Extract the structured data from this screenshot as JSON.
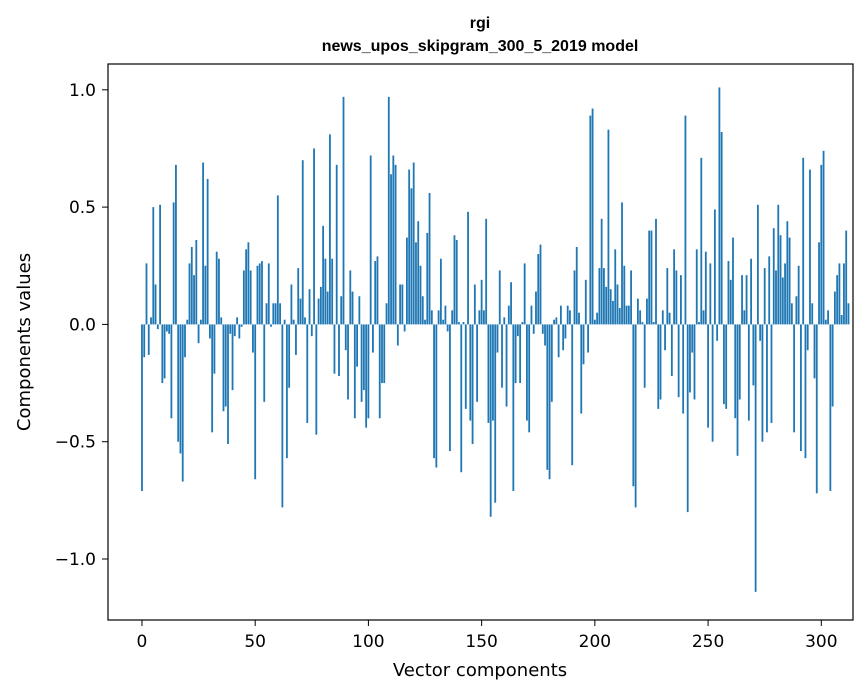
{
  "chart_data": {
    "type": "bar",
    "title": "rgi",
    "subtitle": "news_upos_skipgram_300_5_2019 model",
    "xlabel": "Vector components",
    "ylabel": "Components values",
    "xlim": [
      -15,
      314
    ],
    "ylim": [
      -1.26,
      1.11
    ],
    "xticks": [
      0,
      50,
      100,
      150,
      200,
      250,
      300
    ],
    "xtick_labels": [
      "0",
      "50",
      "100",
      "150",
      "200",
      "250",
      "300"
    ],
    "yticks": [
      -1.0,
      -0.5,
      0.0,
      0.5,
      1.0
    ],
    "ytick_labels": [
      "−1.0",
      "−0.5",
      "0.0",
      "0.5",
      "1.0"
    ],
    "bar_color": "#1f77b4",
    "grid": false,
    "values": [
      -0.71,
      -0.14,
      0.26,
      -0.13,
      0.03,
      0.5,
      0.17,
      -0.02,
      0.51,
      -0.25,
      -0.23,
      -0.03,
      -0.04,
      -0.4,
      0.52,
      0.68,
      -0.5,
      -0.55,
      -0.67,
      -0.14,
      0.02,
      0.26,
      0.33,
      0.21,
      0.36,
      -0.08,
      0.02,
      0.69,
      0.25,
      0.62,
      -0.06,
      -0.46,
      -0.21,
      0.31,
      0.28,
      0.03,
      -0.37,
      -0.35,
      -0.51,
      -0.04,
      -0.28,
      -0.05,
      0.03,
      -0.06,
      -0.01,
      0.23,
      0.32,
      0.35,
      0.23,
      -0.12,
      -0.66,
      0.25,
      0.26,
      0.27,
      -0.33,
      0.09,
      0.26,
      -0.01,
      0.09,
      0.09,
      0.55,
      0.09,
      -0.78,
      0.02,
      -0.57,
      -0.27,
      0.17,
      0.02,
      -0.13,
      0.24,
      0.11,
      0.7,
      0.03,
      -0.42,
      0.15,
      -0.05,
      0.75,
      -0.47,
      0.11,
      0.16,
      0.42,
      0.28,
      0.14,
      0.81,
      0.28,
      -0.21,
      0.68,
      -0.22,
      0.12,
      0.97,
      -0.11,
      -0.32,
      0.23,
      0.14,
      -0.4,
      -0.18,
      0.12,
      -0.33,
      -0.28,
      -0.44,
      -0.4,
      0.72,
      -0.12,
      0.27,
      0.29,
      -0.4,
      -0.25,
      -0.25,
      0.09,
      0.97,
      0.64,
      0.72,
      0.68,
      -0.09,
      0.17,
      0.17,
      -0.03,
      0.37,
      0.66,
      0.58,
      0.69,
      0.35,
      0.44,
      0.25,
      0.12,
      0.02,
      0.39,
      0.56,
      0.06,
      -0.57,
      -0.61,
      0.06,
      0.28,
      0.02,
      0.08,
      -0.03,
      -0.54,
      0.06,
      0.38,
      0.36,
      0.01,
      -0.63,
      0.01,
      -0.36,
      0.48,
      -0.41,
      -0.51,
      0.17,
      -0.33,
      0.06,
      0.19,
      0.06,
      0.45,
      -0.42,
      -0.82,
      -0.41,
      -0.76,
      -0.12,
      0.23,
      -0.27,
      0.03,
      -0.35,
      0.08,
      0.18,
      -0.71,
      -0.25,
      -0.05,
      -0.25,
      0.01,
      0.26,
      -0.41,
      -0.46,
      0.08,
      -0.04,
      0.14,
      0.3,
      0.34,
      -0.04,
      -0.09,
      -0.62,
      -0.66,
      -0.33,
      0.02,
      0.03,
      -0.14,
      0.08,
      -0.11,
      -0.06,
      0.08,
      0.06,
      -0.6,
      0.23,
      0.33,
      0.05,
      -0.38,
      -0.17,
      0.19,
      -0.12,
      0.89,
      0.92,
      0.02,
      0.05,
      0.24,
      0.45,
      0.24,
      0.16,
      0.83,
      0.15,
      0.1,
      0.32,
      0.17,
      0.07,
      0.52,
      0.25,
      0.08,
      0.08,
      0.23,
      -0.69,
      -0.78,
      0.11,
      0.06,
      0.01,
      -0.27,
      0.11,
      0.4,
      0.4,
      0.01,
      0.45,
      -0.36,
      -0.32,
      0.06,
      -0.11,
      0.24,
      0.05,
      -0.22,
      0.32,
      0.23,
      -0.31,
      0.21,
      -0.38,
      0.89,
      -0.8,
      -0.29,
      -0.12,
      -0.32,
      0.32,
      0.01,
      0.71,
      0.06,
      0.31,
      -0.44,
      0.26,
      -0.5,
      0.49,
      -0.07,
      1.01,
      0.82,
      -0.34,
      -0.36,
      0.27,
      0.19,
      0.37,
      -0.4,
      -0.56,
      -0.32,
      0.21,
      0.06,
      0.21,
      -0.41,
      0.28,
      -0.26,
      -1.14,
      0.51,
      -0.07,
      -0.5,
      0.24,
      -0.46,
      0.29,
      -0.42,
      0.41,
      0.23,
      0.51,
      0.38,
      0.2,
      0.26,
      0.44,
      0.37,
      0.09,
      -0.46,
      0.12,
      0.25,
      -0.54,
      0.71,
      -0.57,
      -0.11,
      0.66,
      0.09,
      -0.23,
      -0.72,
      0.35,
      0.68,
      0.74,
      0.02,
      0.06,
      -0.71,
      -0.35,
      0.14,
      0.21,
      0.26,
      0.04,
      0.26,
      0.4,
      0.09
    ]
  }
}
